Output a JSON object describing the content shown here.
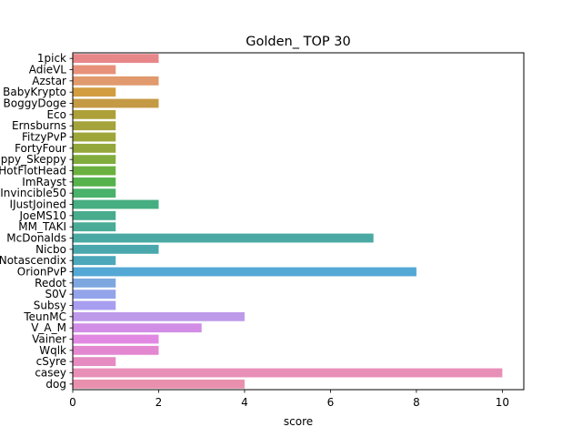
{
  "chart_data": {
    "type": "bar",
    "orientation": "horizontal",
    "title": "Golden_ TOP 30",
    "xlabel": "score",
    "ylabel": "",
    "xlim": [
      0,
      10.5
    ],
    "xticks": [
      "0",
      "2",
      "4",
      "6",
      "8",
      "10"
    ],
    "grid": false,
    "categories": [
      "1pick",
      "AdieVL",
      "Azstar",
      "BabyKrypto",
      "BoggyDoge",
      "Eco",
      "Ernsburns",
      "FitzyPvP",
      "FortyFour",
      "Happy_Skeppy",
      "HotFlotHead",
      "ImRayst",
      "Invincible50",
      "IJustJoined",
      "JoeMS10",
      "MM_TAKI",
      "McDonalds",
      "Nicbo",
      "Notascendix",
      "OrionPvP",
      "Redot",
      "S0V",
      "Subsy",
      "TeunMC",
      "V_A_M",
      "Vainer",
      "Wqlk",
      "cSyre",
      "casey",
      "dog"
    ],
    "values": [
      2,
      1,
      2,
      1,
      2,
      1,
      1,
      1,
      1,
      1,
      1,
      1,
      1,
      2,
      1,
      1,
      7,
      2,
      1,
      8,
      1,
      1,
      1,
      4,
      3,
      2,
      2,
      1,
      10,
      4
    ],
    "colors": [
      "#e8878a",
      "#e8917a",
      "#e09a6e",
      "#d29d3f",
      "#c59a45",
      "#aea039",
      "#a5a33c",
      "#9ea639",
      "#94a73b",
      "#81ad3e",
      "#6bb13f",
      "#56b34c",
      "#4ab26a",
      "#47ae81",
      "#48ac8d",
      "#4aab97",
      "#4aaaa3",
      "#4aa8ad",
      "#4ba8ba",
      "#53a8d6",
      "#7ea7e0",
      "#93a4ea",
      "#a79ef0",
      "#be9aea",
      "#d28ee6",
      "#e189e2",
      "#e387d0",
      "#e58bc2",
      "#e88fb8",
      "#e890ae"
    ]
  }
}
